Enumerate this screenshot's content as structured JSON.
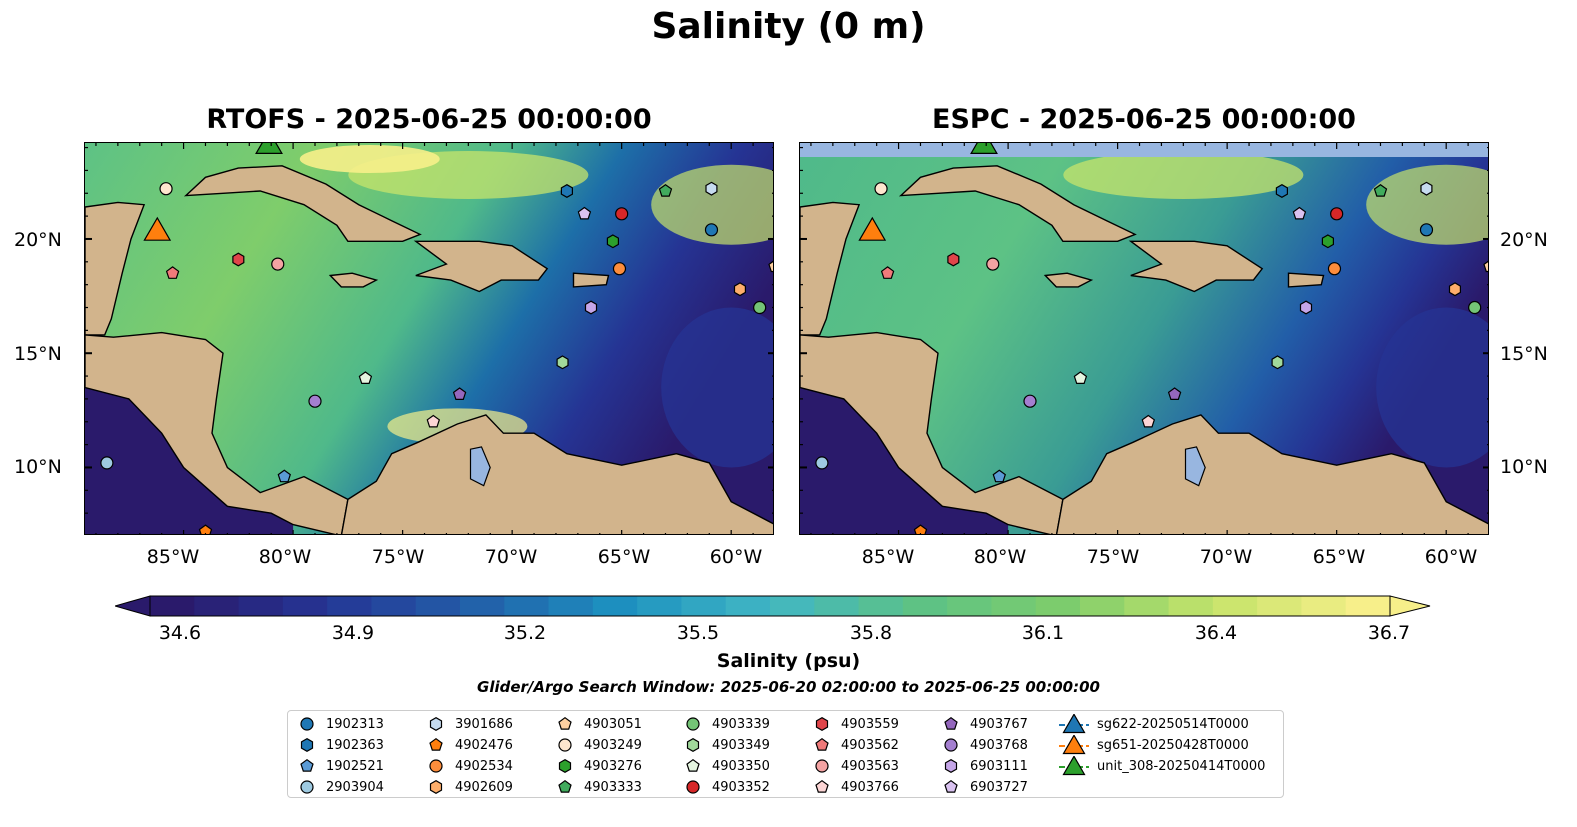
{
  "title": "Salinity (0 m)",
  "panels": [
    {
      "title": "RTOFS - 2025-06-25 00:00:00",
      "model": "RTOFS"
    },
    {
      "title": "ESPC - 2025-06-25 00:00:00",
      "model": "ESPC"
    }
  ],
  "axes": {
    "lat_ticks": [
      "20°N",
      "15°N",
      "10°N"
    ],
    "lon_ticks": [
      "85°W",
      "80°W",
      "75°W",
      "70°W",
      "65°W",
      "60°W"
    ]
  },
  "colorbar": {
    "label": "Salinity (psu)",
    "ticks": [
      "34.6",
      "34.9",
      "35.2",
      "35.5",
      "35.8",
      "36.1",
      "36.4",
      "36.7"
    ],
    "range": [
      34.6,
      36.7
    ],
    "colormap": [
      "#2a1a6b",
      "#253494",
      "#225ea8",
      "#1d91c0",
      "#41b6c4",
      "#5dc285",
      "#7fcd6b",
      "#c7e46b",
      "#f7ef8a"
    ],
    "extend": "both"
  },
  "search_window": "Glider/Argo Search Window: 2025-06-20 02:00:00 to 2025-06-25 00:00:00",
  "colors": {
    "land": "#d2b48c",
    "ocean_low": "#2a1a6b",
    "ocean_mid": "#5dc285",
    "ocean_high": "#f7ef8a",
    "nodata": "#98b6e0"
  },
  "legend": [
    {
      "label": "1902313",
      "marker": "circle",
      "color": "#1f77b4"
    },
    {
      "label": "1902363",
      "marker": "hexagon",
      "color": "#1f77b4"
    },
    {
      "label": "1902521",
      "marker": "pentagon",
      "color": "#5b9bd5"
    },
    {
      "label": "2903904",
      "marker": "circle",
      "color": "#9ecae1"
    },
    {
      "label": "3901686",
      "marker": "hexagon",
      "color": "#c6dbef"
    },
    {
      "label": "4902476",
      "marker": "pentagon",
      "color": "#ff7f0e"
    },
    {
      "label": "4902534",
      "marker": "circle",
      "color": "#fd8d3c"
    },
    {
      "label": "4902609",
      "marker": "hexagon",
      "color": "#fdae6b"
    },
    {
      "label": "4903051",
      "marker": "pentagon",
      "color": "#fdd0a2"
    },
    {
      "label": "4903249",
      "marker": "circle",
      "color": "#fee6ce"
    },
    {
      "label": "4903276",
      "marker": "hexagon",
      "color": "#2ca02c"
    },
    {
      "label": "4903333",
      "marker": "pentagon",
      "color": "#41ab5d"
    },
    {
      "label": "4903339",
      "marker": "circle",
      "color": "#74c476"
    },
    {
      "label": "4903349",
      "marker": "hexagon",
      "color": "#a1d99b"
    },
    {
      "label": "4903350",
      "marker": "pentagon",
      "color": "#e5f5e0"
    },
    {
      "label": "4903352",
      "marker": "circle",
      "color": "#d62728"
    },
    {
      "label": "4903559",
      "marker": "hexagon",
      "color": "#e0454a"
    },
    {
      "label": "4903562",
      "marker": "pentagon",
      "color": "#f07a7a"
    },
    {
      "label": "4903563",
      "marker": "circle",
      "color": "#f4a3a3"
    },
    {
      "label": "4903766",
      "marker": "pentagon",
      "color": "#fcd5d5"
    },
    {
      "label": "4903767",
      "marker": "pentagon",
      "color": "#9467bd"
    },
    {
      "label": "4903768",
      "marker": "circle",
      "color": "#a47fd0"
    },
    {
      "label": "6903111",
      "marker": "hexagon",
      "color": "#c5a6e8"
    },
    {
      "label": "6903727",
      "marker": "pentagon",
      "color": "#d9c2f0"
    },
    {
      "label": "sg622-20250514T0000",
      "marker": "triangle",
      "color": "#1f77b4"
    },
    {
      "label": "sg651-20250428T0000",
      "marker": "triangle",
      "color": "#ff7f0e"
    },
    {
      "label": "unit_308-20250414T0000",
      "marker": "triangle",
      "color": "#2ca02c"
    }
  ],
  "floats": [
    {
      "id": "4903249",
      "lon": -85.8,
      "lat": 22.2
    },
    {
      "id": "sg651-20250428T0000",
      "lon": -86.2,
      "lat": 20.4
    },
    {
      "id": "unit_308-20250414T0000",
      "lon": -81.1,
      "lat": 24.2
    },
    {
      "id": "4903562",
      "lon": -85.5,
      "lat": 18.5
    },
    {
      "id": "4903559",
      "lon": -82.5,
      "lat": 19.1
    },
    {
      "id": "4903563",
      "lon": -80.7,
      "lat": 18.9
    },
    {
      "id": "1902363",
      "lon": -67.5,
      "lat": 22.1
    },
    {
      "id": "6903727",
      "lon": -66.7,
      "lat": 21.1
    },
    {
      "id": "4903352",
      "lon": -65.0,
      "lat": 21.1
    },
    {
      "id": "4903333",
      "lon": -63.0,
      "lat": 22.1
    },
    {
      "id": "3901686",
      "lon": -60.9,
      "lat": 22.2
    },
    {
      "id": "1902313",
      "lon": -60.9,
      "lat": 20.4
    },
    {
      "id": "4903276",
      "lon": -65.4,
      "lat": 19.9
    },
    {
      "id": "4902534",
      "lon": -65.1,
      "lat": 18.7
    },
    {
      "id": "4902609",
      "lon": -59.6,
      "lat": 17.8
    },
    {
      "id": "4903051",
      "lon": -58.0,
      "lat": 18.8
    },
    {
      "id": "4903339",
      "lon": -58.7,
      "lat": 17.0
    },
    {
      "id": "6903111",
      "lon": -66.4,
      "lat": 17.0
    },
    {
      "id": "4903349",
      "lon": -67.7,
      "lat": 14.6
    },
    {
      "id": "4903350",
      "lon": -76.7,
      "lat": 13.9
    },
    {
      "id": "4903768",
      "lon": -79.0,
      "lat": 12.9
    },
    {
      "id": "4903767",
      "lon": -72.4,
      "lat": 13.2
    },
    {
      "id": "4903766",
      "lon": -73.6,
      "lat": 12.0
    },
    {
      "id": "2903904",
      "lon": -88.5,
      "lat": 10.2
    },
    {
      "id": "1902521",
      "lon": -80.4,
      "lat": 9.6
    },
    {
      "id": "4902476",
      "lon": -84.0,
      "lat": 7.2
    }
  ]
}
